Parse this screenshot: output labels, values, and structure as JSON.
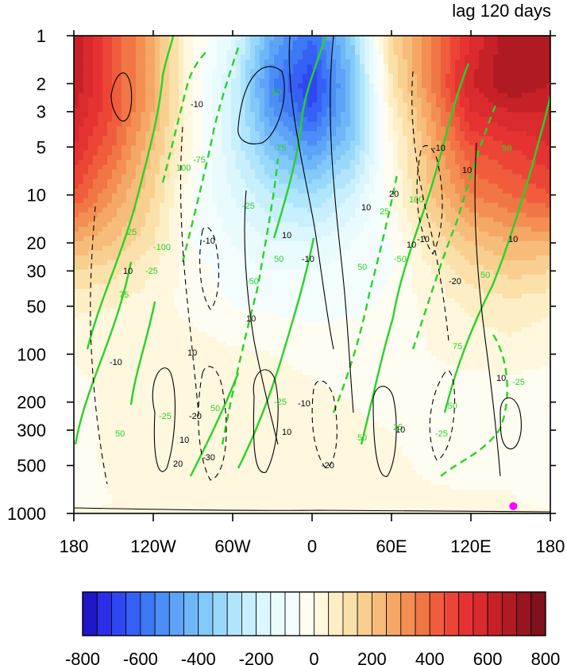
{
  "chart_data": {
    "type": "heatmap",
    "title": "lag 120 days",
    "x_ticks": [
      "180",
      "120W",
      "60W",
      "0",
      "60E",
      "120E",
      "180"
    ],
    "x_range": [
      -180,
      180
    ],
    "y_ticks": [
      "1",
      "2",
      "3",
      "5",
      "10",
      "20",
      "30",
      "50",
      "100",
      "200",
      "300",
      "500",
      "1000"
    ],
    "y_tick_values": [
      1,
      2,
      3,
      5,
      10,
      20,
      30,
      50,
      100,
      200,
      300,
      500,
      1000
    ],
    "y_range": [
      1,
      1000
    ],
    "y_scale": "log",
    "y_reversed": true,
    "colorbar": {
      "levels": [
        -800,
        -750,
        -700,
        -650,
        -600,
        -550,
        -500,
        -450,
        -400,
        -350,
        -300,
        -250,
        -200,
        -150,
        -100,
        -50,
        0,
        50,
        100,
        150,
        200,
        250,
        300,
        350,
        400,
        450,
        500,
        550,
        600,
        650,
        700,
        750,
        800
      ],
      "tick_labels": [
        "-800",
        "-600",
        "-400",
        "-200",
        "0",
        "200",
        "400",
        "600",
        "800"
      ],
      "colors": [
        "#1f16c8",
        "#2b2ee6",
        "#2f47f3",
        "#3560f5",
        "#3d78f7",
        "#4c8ef7",
        "#5da3f7",
        "#6fb6f8",
        "#82c8f9",
        "#98d8fb",
        "#b0e5fc",
        "#c7effd",
        "#dbf6fe",
        "#eafbfe",
        "#f4fdfe",
        "#fffdf2",
        "#fff7de",
        "#fdeec5",
        "#fbe0aa",
        "#f9cf90",
        "#f7bc7a",
        "#f5a765",
        "#f38f53",
        "#f17645",
        "#ef5d3c",
        "#ec4536",
        "#e63232",
        "#d92a2d",
        "#c72128",
        "#b01a22",
        "#961520",
        "#7e111c"
      ]
    },
    "fill_field": {
      "x": [
        -180,
        -150,
        -120,
        -90,
        -60,
        -30,
        0,
        30,
        60,
        90,
        120,
        150,
        180
      ],
      "p": [
        1,
        2,
        3,
        5,
        10,
        20,
        30,
        50,
        100,
        200,
        300,
        500,
        850,
        1000
      ],
      "values": [
        [
          650,
          450,
          250,
          0,
          -150,
          -450,
          -600,
          -350,
          150,
          350,
          550,
          700,
          650
        ],
        [
          650,
          450,
          250,
          0,
          -200,
          -550,
          -700,
          -400,
          100,
          350,
          600,
          700,
          650
        ],
        [
          600,
          450,
          250,
          0,
          -200,
          -500,
          -650,
          -400,
          50,
          300,
          550,
          600,
          600
        ],
        [
          550,
          400,
          200,
          0,
          -200,
          -400,
          -500,
          -350,
          0,
          250,
          450,
          500,
          550
        ],
        [
          450,
          300,
          150,
          -50,
          -150,
          -250,
          -300,
          -200,
          0,
          200,
          350,
          400,
          450
        ],
        [
          250,
          200,
          100,
          -50,
          -100,
          -150,
          -150,
          -100,
          -50,
          100,
          200,
          250,
          250
        ],
        [
          150,
          120,
          50,
          -30,
          -70,
          -100,
          -100,
          -80,
          -50,
          50,
          130,
          170,
          150
        ],
        [
          60,
          50,
          20,
          -20,
          -50,
          -60,
          -70,
          -60,
          -40,
          20,
          60,
          80,
          60
        ],
        [
          10,
          30,
          40,
          30,
          10,
          0,
          -10,
          -20,
          -30,
          0,
          20,
          30,
          10
        ],
        [
          -40,
          20,
          50,
          40,
          30,
          20,
          10,
          0,
          -20,
          -30,
          -40,
          -40,
          -40
        ],
        [
          -30,
          20,
          40,
          40,
          30,
          20,
          10,
          10,
          0,
          -20,
          -30,
          -30,
          -30
        ],
        [
          -20,
          10,
          30,
          30,
          20,
          20,
          10,
          20,
          10,
          -10,
          -20,
          -20,
          -20
        ],
        [
          -20,
          0,
          20,
          20,
          10,
          10,
          10,
          20,
          20,
          10,
          10,
          10,
          -20
        ],
        [
          10,
          10,
          10,
          10,
          10,
          10,
          10,
          10,
          10,
          10,
          10,
          10,
          10
        ]
      ]
    },
    "green_contour_labels": [
      "-100",
      "-75",
      "-50",
      "-25",
      "25",
      "50",
      "75",
      "100"
    ],
    "black_contour_labels": [
      "-30",
      "-20",
      "-10",
      "10",
      "20",
      "30"
    ],
    "marker": {
      "lon": 152,
      "p": 900,
      "color": "#ff00ff"
    }
  }
}
